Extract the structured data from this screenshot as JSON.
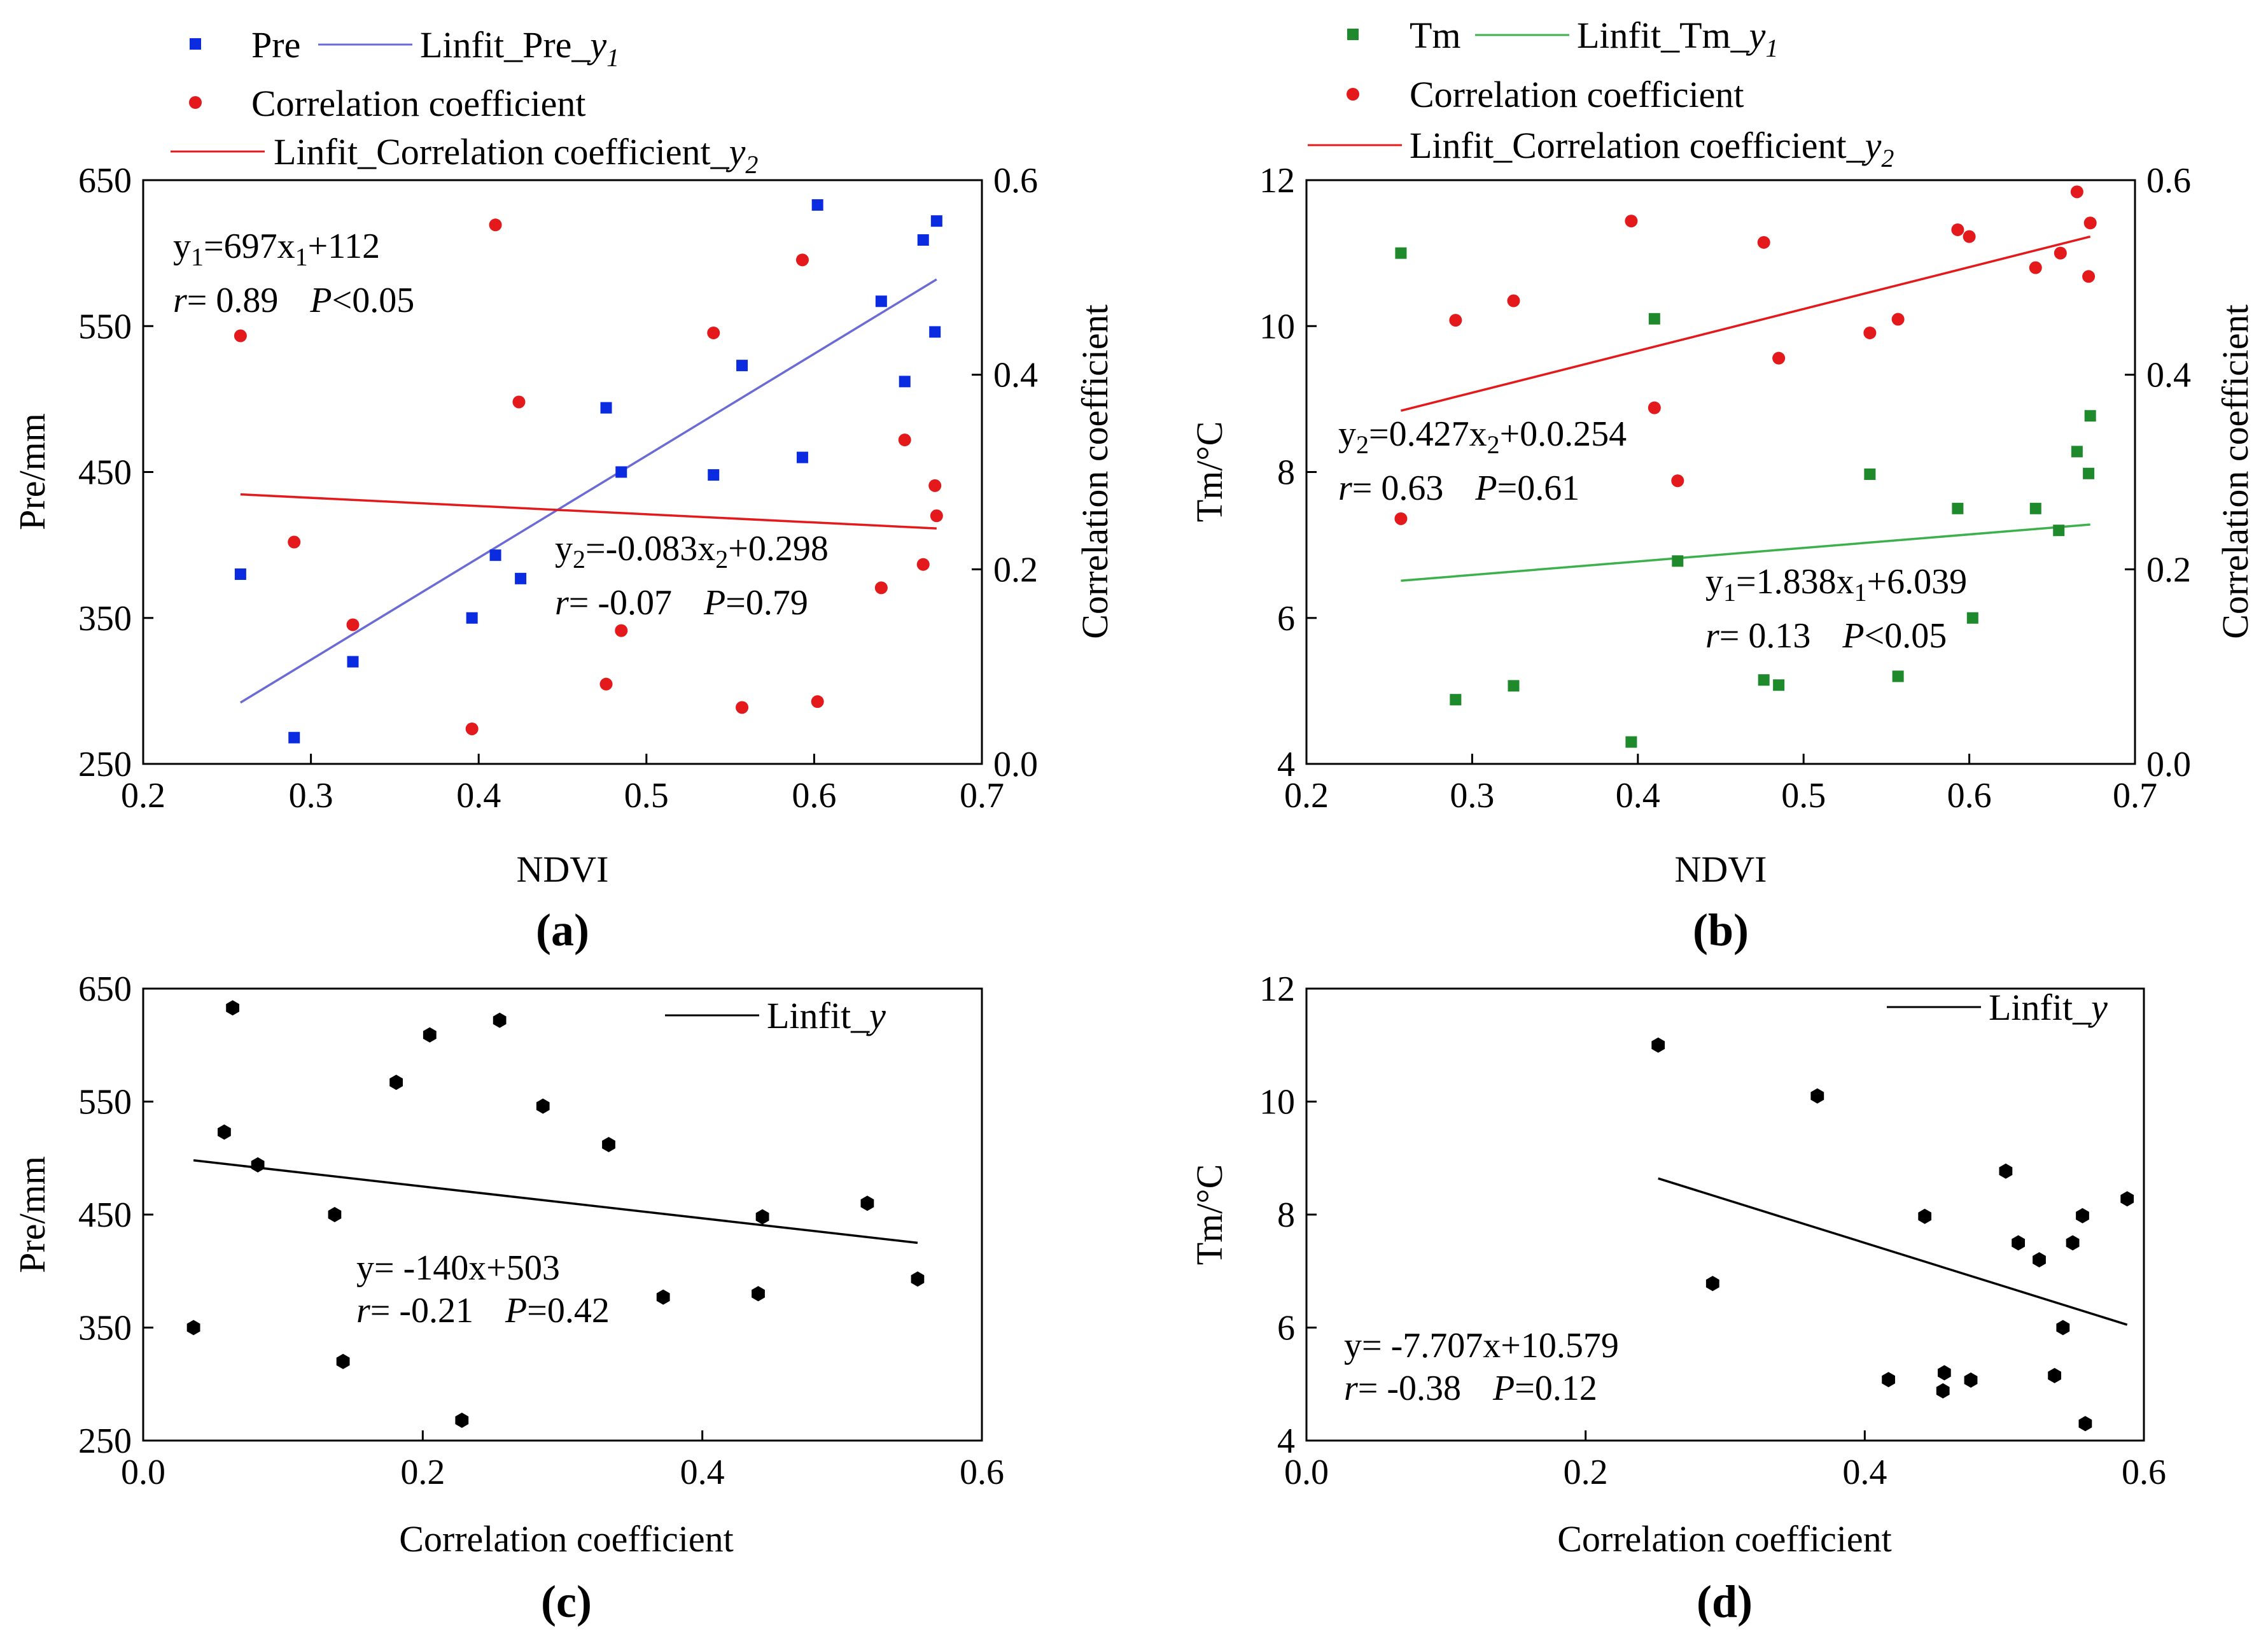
{
  "chart_data": [
    {
      "id": "a",
      "type": "scatter",
      "panel_label": "(a)",
      "xlabel": "NDVI",
      "ylabel_left": "Pre/mm",
      "ylabel_right": "Correlation coefficient",
      "xlim": [
        0.2,
        0.7
      ],
      "ylim_left": [
        250,
        650
      ],
      "ylim_right": [
        0.0,
        0.6
      ],
      "xticks": [
        "0.2",
        "0.3",
        "0.4",
        "0.5",
        "0.6",
        "0.7"
      ],
      "yticks_left": [
        "250",
        "350",
        "450",
        "550",
        "650"
      ],
      "yticks_right": [
        "0.0",
        "0.2",
        "0.4",
        "0.6"
      ],
      "colors": {
        "s1": "#0a2be0",
        "s2": "#e3191c",
        "fit1": "#6b6bd6",
        "fit2": "#e3191c"
      },
      "legend": {
        "s1": "Pre",
        "fit1": {
          "main": "Linfit_Pre_",
          "var": "y",
          "sub": "1"
        },
        "s2": "Correlation coefficient",
        "fit2": {
          "main": "Linfit_Correlation coefficient_",
          "var": "y",
          "sub": "2"
        }
      },
      "series": [
        {
          "name": "Pre",
          "axis": "left",
          "marker": "square",
          "x": [
            0.258,
            0.29,
            0.325,
            0.396,
            0.41,
            0.425,
            0.476,
            0.485,
            0.54,
            0.557,
            0.593,
            0.602,
            0.64,
            0.654,
            0.665,
            0.672,
            0.673
          ],
          "y": [
            380,
            268,
            320,
            350,
            393,
            377,
            494,
            450,
            448,
            523,
            460,
            633,
            567,
            512,
            609,
            546,
            622
          ]
        },
        {
          "name": "Correlation coefficient",
          "axis": "right",
          "marker": "circle",
          "x": [
            0.258,
            0.29,
            0.325,
            0.396,
            0.41,
            0.424,
            0.476,
            0.485,
            0.54,
            0.557,
            0.593,
            0.602,
            0.64,
            0.654,
            0.665,
            0.672,
            0.673
          ],
          "y": [
            0.44,
            0.228,
            0.143,
            0.036,
            0.554,
            0.372,
            0.082,
            0.137,
            0.443,
            0.058,
            0.518,
            0.064,
            0.181,
            0.333,
            0.205,
            0.286,
            0.255
          ]
        }
      ],
      "fits": [
        {
          "name": "Linfit_Pre_y1",
          "axis": "left",
          "x": [
            0.258,
            0.673
          ],
          "y": [
            292,
            582
          ]
        },
        {
          "name": "Linfit_Correlation coefficient_y2",
          "axis": "right",
          "x": [
            0.258,
            0.673
          ],
          "y": [
            0.277,
            0.242
          ]
        }
      ],
      "annotations": [
        {
          "lines": [
            {
              "pre": "y",
              "sub1": "1",
              "mid": "=697x",
              "sub2": "1",
              "post": "+112"
            },
            {
              "r_label": "r",
              "r_val": "= 0.89",
              "p_label": "P",
              "p_val": "<0.05"
            }
          ]
        },
        {
          "lines": [
            {
              "pre": "y",
              "sub1": "2",
              "mid": "=-0.083x",
              "sub2": "2",
              "post": "+0.298"
            },
            {
              "r_label": "r",
              "r_val": "= -0.07",
              "p_label": "P",
              "p_val": "=0.79"
            }
          ]
        }
      ]
    },
    {
      "id": "b",
      "type": "scatter",
      "panel_label": "(b)",
      "xlabel": "NDVI",
      "ylabel_left": "Tm/°C",
      "ylabel_right": "Correlation coefficient",
      "xlim": [
        0.2,
        0.7
      ],
      "ylim_left": [
        4,
        12
      ],
      "ylim_right": [
        0.0,
        0.6
      ],
      "xticks": [
        "0.2",
        "0.3",
        "0.4",
        "0.5",
        "0.6",
        "0.7"
      ],
      "yticks_left": [
        "4",
        "6",
        "8",
        "10",
        "12"
      ],
      "yticks_right": [
        "0.0",
        "0.2",
        "0.4",
        "0.6"
      ],
      "colors": {
        "s1": "#1f8a2b",
        "s2": "#e3191c",
        "fit1": "#3cb04b",
        "fit2": "#e3191c"
      },
      "legend": {
        "s1": "Tm",
        "fit1": {
          "main": "Linfit_Tm_",
          "var": "y",
          "sub": "1"
        },
        "s2": "Correlation coefficient",
        "fit2": {
          "main": "Linfit_Correlation coefficient_",
          "var": "y",
          "sub": "2"
        }
      },
      "series": [
        {
          "name": "Tm",
          "axis": "left",
          "marker": "square",
          "x": [
            0.257,
            0.29,
            0.325,
            0.396,
            0.41,
            0.424,
            0.476,
            0.485,
            0.54,
            0.557,
            0.593,
            0.602,
            0.64,
            0.654,
            0.665,
            0.672,
            0.673
          ],
          "y": [
            11.0,
            4.88,
            5.07,
            4.3,
            10.1,
            6.78,
            5.15,
            5.08,
            7.97,
            5.2,
            7.5,
            6.0,
            7.5,
            7.2,
            8.28,
            7.98,
            8.77
          ]
        },
        {
          "name": "Correlation coefficient",
          "axis": "right",
          "marker": "circle",
          "x": [
            0.257,
            0.29,
            0.325,
            0.396,
            0.41,
            0.424,
            0.476,
            0.485,
            0.54,
            0.557,
            0.593,
            0.6,
            0.64,
            0.655,
            0.665,
            0.672,
            0.673
          ],
          "y": [
            0.252,
            0.456,
            0.476,
            0.558,
            0.366,
            0.291,
            0.536,
            0.417,
            0.443,
            0.457,
            0.549,
            0.542,
            0.51,
            0.525,
            0.588,
            0.501,
            0.556
          ]
        }
      ],
      "fits": [
        {
          "name": "Linfit_Tm_y1",
          "axis": "left",
          "x": [
            0.257,
            0.673
          ],
          "y": [
            6.51,
            7.28
          ]
        },
        {
          "name": "Linfit_Correlation coefficient_y2",
          "axis": "right",
          "x": [
            0.257,
            0.673
          ],
          "y": [
            0.363,
            0.542
          ]
        }
      ],
      "annotations": [
        {
          "lines": [
            {
              "pre": "y",
              "sub1": "2",
              "mid": "=0.427x",
              "sub2": "2",
              "post": "+0.0.254"
            },
            {
              "r_label": "r",
              "r_val": "= 0.63",
              "p_label": "P",
              "p_val": "=0.61"
            }
          ]
        },
        {
          "lines": [
            {
              "pre": "y",
              "sub1": "1",
              "mid": "=1.838x",
              "sub2": "1",
              "post": "+6.039"
            },
            {
              "r_label": "r",
              "r_val": "= 0.13",
              "p_label": "P",
              "p_val": "<0.05"
            }
          ]
        }
      ]
    },
    {
      "id": "c",
      "type": "scatter",
      "panel_label": "(c)",
      "xlabel": "Correlation coefficient",
      "ylabel_left": "Pre/mm",
      "xlim": [
        0.0,
        0.6
      ],
      "ylim_left": [
        250,
        650
      ],
      "xticks": [
        "0.0",
        "0.2",
        "0.4",
        "0.6"
      ],
      "yticks_left": [
        "250",
        "350",
        "450",
        "550",
        "650"
      ],
      "colors": {
        "s1": "#000000",
        "fit1": "#000000"
      },
      "legend": {
        "fit1": {
          "main": "Linfit_",
          "var": "y",
          "sub": ""
        }
      },
      "series": [
        {
          "name": "points",
          "axis": "left",
          "marker": "hexagon",
          "x": [
            0.036,
            0.058,
            0.064,
            0.082,
            0.137,
            0.143,
            0.181,
            0.205,
            0.228,
            0.255,
            0.286,
            0.333,
            0.372,
            0.44,
            0.443,
            0.518,
            0.554
          ],
          "y": [
            350,
            523,
            633,
            494,
            450,
            320,
            567,
            609,
            268,
            622,
            546,
            512,
            377,
            380,
            448,
            460,
            393
          ]
        }
      ],
      "fits": [
        {
          "name": "Linfit_y",
          "axis": "left",
          "x": [
            0.036,
            0.554
          ],
          "y": [
            498,
            425
          ]
        }
      ],
      "annotations": [
        {
          "lines": [
            {
              "plain": "y= -140x+503"
            },
            {
              "r_label": "r",
              "r_val": "= -0.21",
              "p_label": "P",
              "p_val": "=0.42"
            }
          ]
        }
      ]
    },
    {
      "id": "d",
      "type": "scatter",
      "panel_label": "(d)",
      "xlabel": "Correlation coefficient",
      "ylabel_left": "Tm/°C",
      "xlim": [
        0.0,
        0.6
      ],
      "ylim_left": [
        4,
        12
      ],
      "xticks": [
        "0.0",
        "0.2",
        "0.4",
        "0.6"
      ],
      "yticks_left": [
        "4",
        "6",
        "8",
        "10",
        "12"
      ],
      "colors": {
        "s1": "#000000",
        "fit1": "#000000"
      },
      "legend": {
        "fit1": {
          "main": "Linfit_",
          "var": "y",
          "sub": ""
        }
      },
      "series": [
        {
          "name": "points",
          "axis": "left",
          "marker": "hexagon",
          "x": [
            0.252,
            0.291,
            0.366,
            0.417,
            0.443,
            0.456,
            0.457,
            0.476,
            0.501,
            0.51,
            0.525,
            0.536,
            0.542,
            0.549,
            0.556,
            0.558,
            0.588
          ],
          "y": [
            11.0,
            6.78,
            10.1,
            5.08,
            7.97,
            4.88,
            5.2,
            5.07,
            8.77,
            7.5,
            7.2,
            5.15,
            6.0,
            7.5,
            7.98,
            4.3,
            8.28
          ]
        }
      ],
      "fits": [
        {
          "name": "Linfit_y",
          "axis": "left",
          "x": [
            0.252,
            0.588
          ],
          "y": [
            8.64,
            6.05
          ]
        }
      ],
      "annotations": [
        {
          "lines": [
            {
              "plain": "y= -7.707x+10.579"
            },
            {
              "r_label": "r",
              "r_val": "= -0.38",
              "p_label": "P",
              "p_val": "=0.12"
            }
          ]
        }
      ]
    }
  ]
}
